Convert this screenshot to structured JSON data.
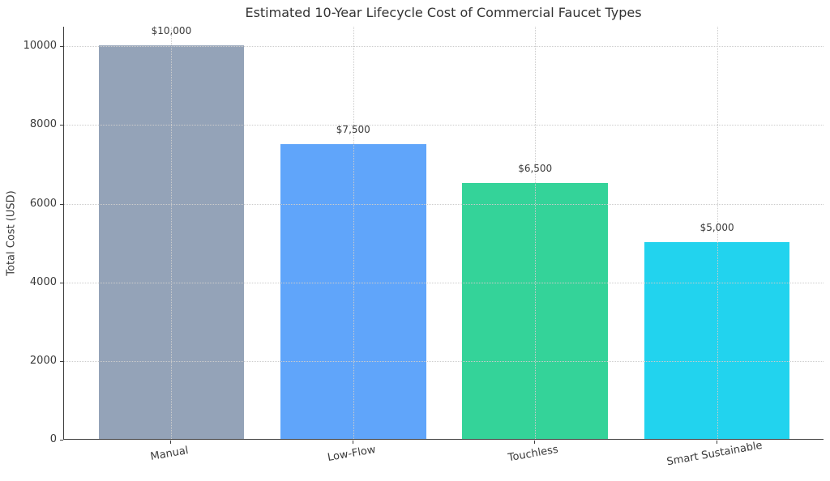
{
  "chart_data": {
    "type": "bar",
    "title": "Estimated 10-Year Lifecycle Cost of Commercial Faucet Types",
    "xlabel": "",
    "ylabel": "Total Cost (USD)",
    "categories": [
      "Manual",
      "Low-Flow",
      "Touchless",
      "Smart Sustainable"
    ],
    "values": [
      10000,
      7500,
      6500,
      5000
    ],
    "bar_value_labels": [
      "$10,000",
      "$7,500",
      "$6,500",
      "$5,000"
    ],
    "bar_colors": [
      "#94A3B8",
      "#60A5FA",
      "#34D399",
      "#22D3EE"
    ],
    "ylim": [
      0,
      10500
    ],
    "yticks": [
      0,
      2000,
      4000,
      6000,
      8000,
      10000
    ],
    "x_tick_rotation_deg": 10,
    "grid": "dotted gridlines on both axes, drawn over bars",
    "legend_position": "none"
  },
  "colors": {
    "background": "#ffffff",
    "axis_spine": "#3c3c3c",
    "gridline": "#cccccc",
    "tick_text": "#3a3a3a",
    "title_text": "#333333"
  }
}
